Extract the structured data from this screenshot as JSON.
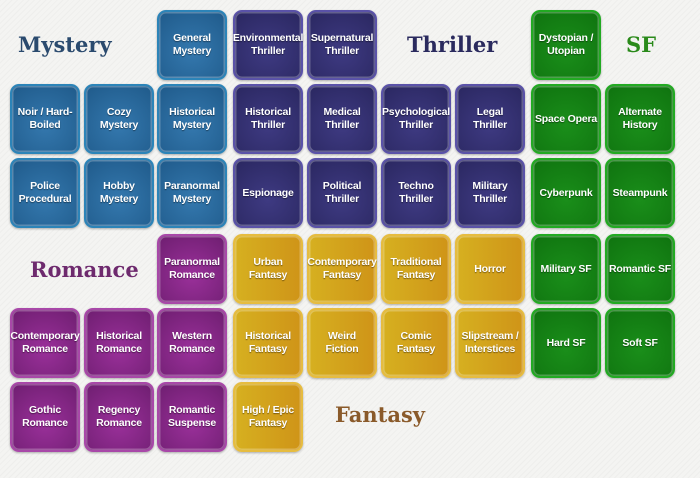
{
  "headings": {
    "mystery": {
      "label": "Mystery",
      "color": "#2a4a6e"
    },
    "thriller": {
      "label": "Thriller",
      "color": "#2a2a5e"
    },
    "sf": {
      "label": "SF",
      "color": "#2a8a1a"
    },
    "romance": {
      "label": "Romance",
      "color": "#6e2a6e"
    },
    "fantasy": {
      "label": "Fantasy",
      "color": "#8a5a2a"
    }
  },
  "groups": {
    "mystery": [
      "General Mystery",
      "Noir / Hard-Boiled",
      "Cozy Mystery",
      "Historical Mystery",
      "Police Procedural",
      "Hobby Mystery",
      "Paranormal Mystery"
    ],
    "thriller": [
      "Environmental Thriller",
      "Supernatural Thriller",
      "Historical Thriller",
      "Medical Thriller",
      "Psychological Thriller",
      "Legal Thriller",
      "Espionage",
      "Political Thriller",
      "Techno Thriller",
      "Military Thriller"
    ],
    "sf": [
      "Dystopian / Utopian",
      "Space Opera",
      "Alternate History",
      "Cyberpunk",
      "Steampunk",
      "Military SF",
      "Romantic SF",
      "Hard SF",
      "Soft SF"
    ],
    "romance": [
      "Paranormal Romance",
      "Contemporary Romance",
      "Historical Romance",
      "Western Romance",
      "Gothic Romance",
      "Regency Romance",
      "Romantic Suspense"
    ],
    "fantasy": [
      "Urban Fantasy",
      "Contemporary Fantasy",
      "Traditional Fantasy",
      "Horror",
      "Historical Fantasy",
      "Weird Fiction",
      "Comic Fantasy",
      "Slipstream / Interstices",
      "High / Epic Fantasy"
    ]
  }
}
